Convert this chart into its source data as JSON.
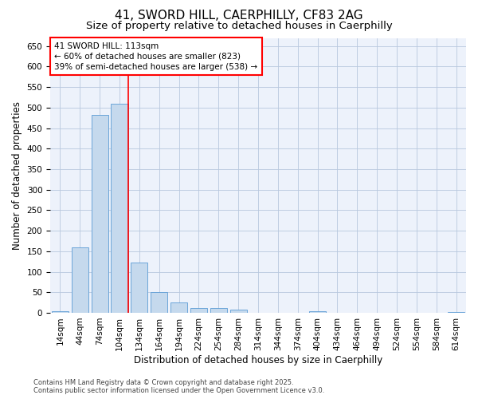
{
  "title_line1": "41, SWORD HILL, CAERPHILLY, CF83 2AG",
  "title_line2": "Size of property relative to detached houses in Caerphilly",
  "xlabel": "Distribution of detached houses by size in Caerphilly",
  "ylabel": "Number of detached properties",
  "footer_line1": "Contains HM Land Registry data © Crown copyright and database right 2025.",
  "footer_line2": "Contains public sector information licensed under the Open Government Licence v3.0.",
  "annotation_line1": "41 SWORD HILL: 113sqm",
  "annotation_line2": "← 60% of detached houses are smaller (823)",
  "annotation_line3": "39% of semi-detached houses are larger (538) →",
  "bar_color": "#c5d9ed",
  "bar_edge_color": "#5b9bd5",
  "vline_color": "red",
  "vline_x_index": 3,
  "categories": [
    "14sqm",
    "44sqm",
    "74sqm",
    "104sqm",
    "134sqm",
    "164sqm",
    "194sqm",
    "224sqm",
    "254sqm",
    "284sqm",
    "314sqm",
    "344sqm",
    "374sqm",
    "404sqm",
    "434sqm",
    "464sqm",
    "494sqm",
    "524sqm",
    "554sqm",
    "584sqm",
    "614sqm"
  ],
  "values": [
    3,
    160,
    483,
    510,
    122,
    50,
    25,
    12,
    11,
    7,
    0,
    0,
    0,
    4,
    0,
    0,
    0,
    0,
    0,
    0,
    2
  ],
  "ylim": [
    0,
    670
  ],
  "yticks": [
    0,
    50,
    100,
    150,
    200,
    250,
    300,
    350,
    400,
    450,
    500,
    550,
    600,
    650
  ],
  "background_color": "#edf2fb",
  "grid_color": "#b8c8de",
  "title_fontsize": 11,
  "subtitle_fontsize": 9.5,
  "tick_fontsize": 7.5,
  "label_fontsize": 8.5,
  "annotation_fontsize": 7.5,
  "footer_fontsize": 6.0
}
